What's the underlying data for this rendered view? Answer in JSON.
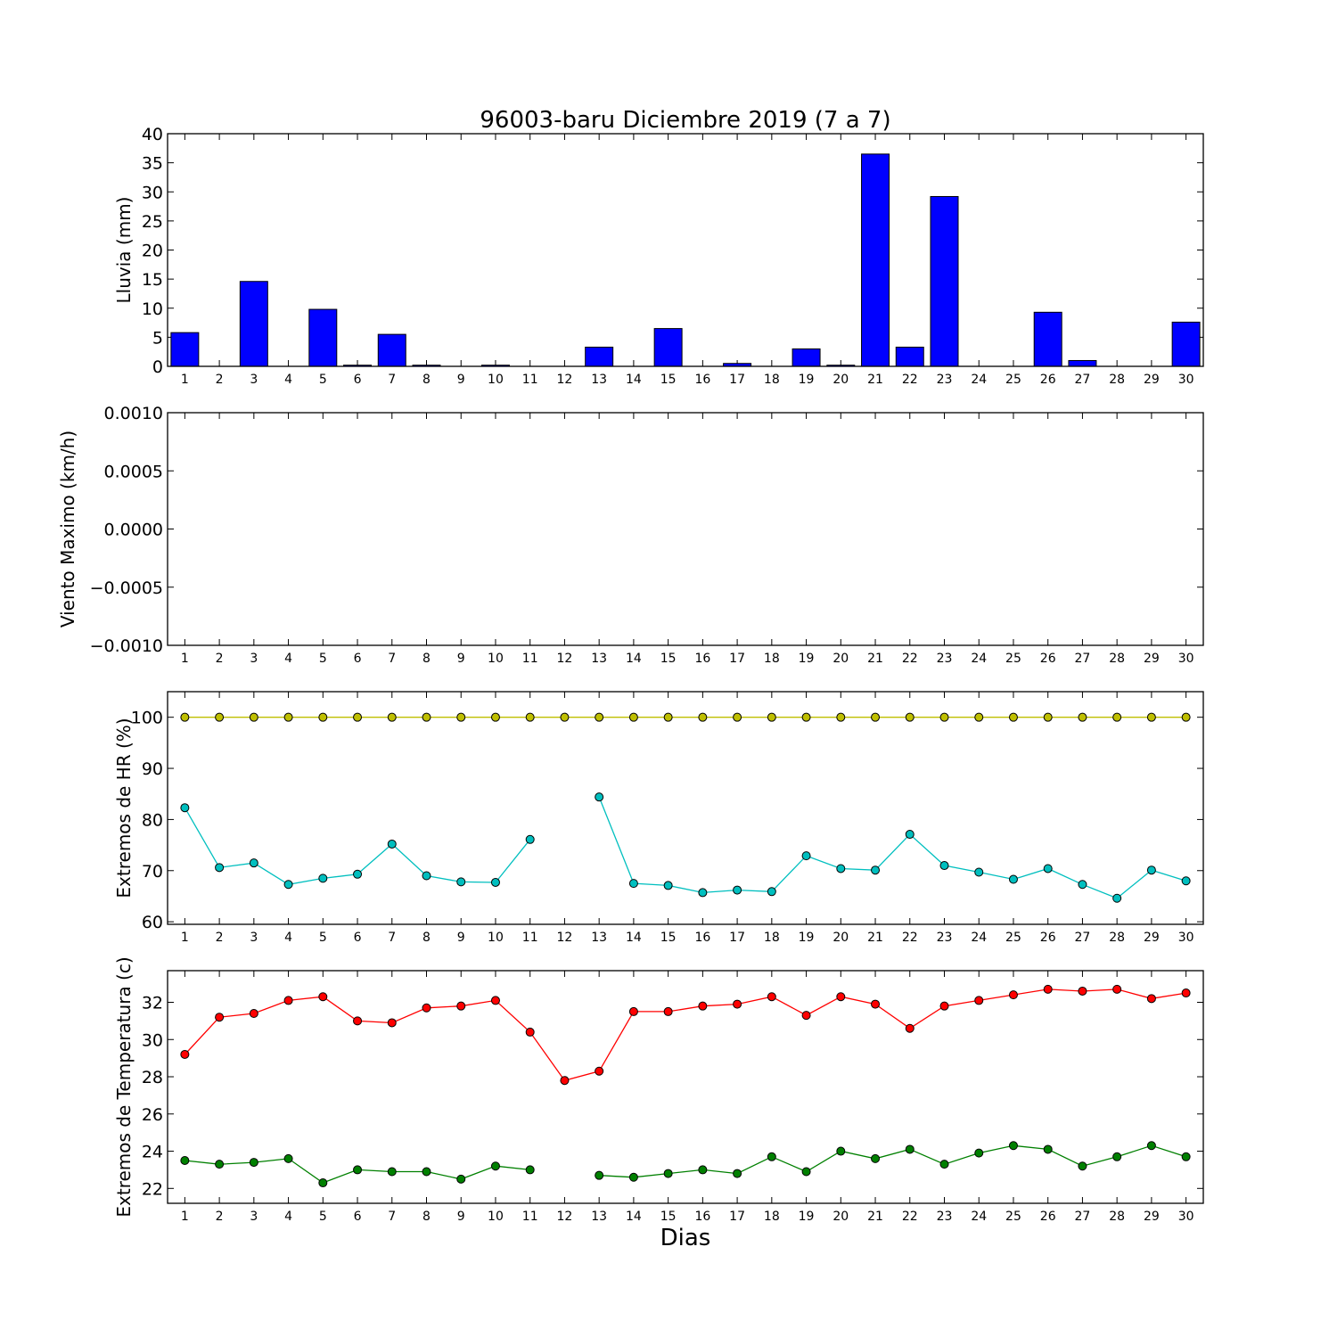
{
  "title": "96003-baru Diciembre 2019  (7 a 7)",
  "xlabel": "Dias",
  "colors": {
    "rain_bar": "#0000ff",
    "hr_max": "#bfbf00",
    "hr_min": "#00bfbf",
    "temp_max": "#ff0000",
    "temp_min": "#008000"
  },
  "chart_data": [
    {
      "type": "bar",
      "ylabel": "Lluvia (mm)",
      "ylim": [
        0,
        40
      ],
      "yticks": [
        "0",
        "5",
        "10",
        "15",
        "20",
        "25",
        "30",
        "35",
        "40"
      ],
      "categories": [
        "1",
        "2",
        "3",
        "4",
        "5",
        "6",
        "7",
        "8",
        "9",
        "10",
        "11",
        "12",
        "13",
        "14",
        "15",
        "16",
        "17",
        "18",
        "19",
        "20",
        "21",
        "22",
        "23",
        "24",
        "25",
        "26",
        "27",
        "28",
        "29",
        "30"
      ],
      "series": [
        {
          "values": [
            5.8,
            0,
            14.6,
            0,
            9.8,
            0.2,
            5.5,
            0.2,
            0,
            0.2,
            0,
            0,
            3.3,
            0,
            6.5,
            0,
            0.5,
            0,
            3.0,
            0.2,
            36.5,
            3.3,
            29.2,
            0,
            0,
            9.3,
            1.0,
            0,
            0,
            7.6
          ]
        }
      ]
    },
    {
      "type": "line",
      "ylabel": "Viento Maximo (km/h)",
      "ylim": [
        -0.001,
        0.001
      ],
      "yticks": [
        "−0.0010",
        "−0.0005",
        "0.0000",
        "0.0005",
        "0.0010"
      ],
      "categories": [
        "1",
        "2",
        "3",
        "4",
        "5",
        "6",
        "7",
        "8",
        "9",
        "10",
        "11",
        "12",
        "13",
        "14",
        "15",
        "16",
        "17",
        "18",
        "19",
        "20",
        "21",
        "22",
        "23",
        "24",
        "25",
        "26",
        "27",
        "28",
        "29",
        "30"
      ],
      "series": []
    },
    {
      "type": "line",
      "ylabel": "Extremos de HR (%)",
      "ylim": [
        59.5,
        105
      ],
      "yticks": [
        "60",
        "70",
        "80",
        "90",
        "100"
      ],
      "categories": [
        "1",
        "2",
        "3",
        "4",
        "5",
        "6",
        "7",
        "8",
        "9",
        "10",
        "11",
        "12",
        "13",
        "14",
        "15",
        "16",
        "17",
        "18",
        "19",
        "20",
        "21",
        "22",
        "23",
        "24",
        "25",
        "26",
        "27",
        "28",
        "29",
        "30"
      ],
      "series": [
        {
          "values": [
            100,
            100,
            100,
            100,
            100,
            100,
            100,
            100,
            100,
            100,
            100,
            100,
            100,
            100,
            100,
            100,
            100,
            100,
            100,
            100,
            100,
            100,
            100,
            100,
            100,
            100,
            100,
            100,
            100,
            100
          ]
        },
        {
          "values": [
            82.3,
            70.6,
            71.5,
            67.3,
            68.5,
            69.3,
            75.2,
            69.0,
            67.8,
            67.7,
            76.1,
            null,
            84.4,
            67.5,
            67.1,
            65.7,
            66.2,
            65.9,
            72.9,
            70.4,
            70.1,
            77.1,
            71.0,
            69.7,
            68.3,
            70.4,
            67.3,
            64.6,
            70.1,
            68.0
          ]
        }
      ]
    },
    {
      "type": "line",
      "ylabel": "Extremos de Temperatura (c)",
      "ylim": [
        21.2,
        33.7
      ],
      "yticks": [
        "22",
        "24",
        "26",
        "28",
        "30",
        "32"
      ],
      "categories": [
        "1",
        "2",
        "3",
        "4",
        "5",
        "6",
        "7",
        "8",
        "9",
        "10",
        "11",
        "12",
        "13",
        "14",
        "15",
        "16",
        "17",
        "18",
        "19",
        "20",
        "21",
        "22",
        "23",
        "24",
        "25",
        "26",
        "27",
        "28",
        "29",
        "30"
      ],
      "series": [
        {
          "values": [
            29.2,
            31.2,
            31.4,
            32.1,
            32.3,
            31.0,
            30.9,
            31.7,
            31.8,
            32.1,
            30.4,
            27.8,
            28.3,
            31.5,
            31.5,
            31.8,
            31.9,
            32.3,
            31.3,
            32.3,
            31.9,
            30.6,
            31.8,
            32.1,
            32.4,
            32.7,
            32.6,
            32.7,
            32.2,
            32.5
          ]
        },
        {
          "values": [
            23.5,
            23.3,
            23.4,
            23.6,
            22.3,
            23.0,
            22.9,
            22.9,
            22.5,
            23.2,
            23.0,
            null,
            22.7,
            22.6,
            22.8,
            23.0,
            22.8,
            23.7,
            22.9,
            24.0,
            23.6,
            24.1,
            23.3,
            23.9,
            24.3,
            24.1,
            23.2,
            23.7,
            24.3,
            23.7
          ]
        }
      ]
    }
  ]
}
